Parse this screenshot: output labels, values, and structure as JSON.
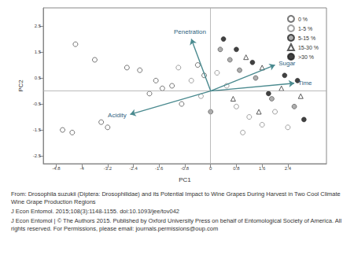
{
  "chart_data": {
    "type": "scatter",
    "x_label": "PC1",
    "y_label": "PC2",
    "xlim": [
      -5.2,
      3.6
    ],
    "ylim": [
      -2.8,
      3.2
    ],
    "xticks": [
      -4.8,
      -4,
      -3.2,
      -2.4,
      -1.6,
      -0.8,
      0,
      0.8,
      1.6,
      2.4
    ],
    "yticks": [
      -2.5,
      -1.5,
      -0.5,
      0.5,
      1.5,
      2.5
    ],
    "grid": false,
    "legend": "upper right",
    "series": [
      {
        "name": "0 %",
        "color": "#555555",
        "marker": "open_circle",
        "x": [
          -4.2,
          -3.6,
          -4.6,
          -4.3,
          -3.4,
          -3.2,
          -2.2,
          -1.7,
          -1.5,
          -1.2,
          -2.6,
          -1.9,
          -0.9,
          -0.4,
          -0.2
        ],
        "y": [
          1.8,
          1.2,
          -1.5,
          -1.6,
          -1.2,
          -1.4,
          0.8,
          0.4,
          0.1,
          0.2,
          0.9,
          -0.1,
          -0.5,
          1.0,
          0.6
        ]
      },
      {
        "name": "1-5 %",
        "color": "#8a8a8a",
        "marker": "open_circle",
        "x": [
          -1.0,
          -0.6,
          0.2,
          0.5,
          -0.3,
          0.8,
          1.2,
          1.6,
          2.0,
          2.4,
          1.0
        ],
        "y": [
          0.9,
          0.4,
          0.7,
          0.2,
          -0.2,
          -0.6,
          -1.0,
          -1.3,
          -0.8,
          -1.4,
          -1.6
        ]
      },
      {
        "name": "5-15 %",
        "color": "#9a9a9a",
        "marker": "filled_circle",
        "x": [
          0.3,
          0.6,
          0.9,
          1.4,
          1.9,
          2.6,
          0.0
        ],
        "y": [
          1.6,
          1.2,
          0.8,
          0.5,
          -0.3,
          -0.6,
          -0.8
        ]
      },
      {
        "name": "15-30 %",
        "color": "#333333",
        "marker": "open_triangle",
        "x": [
          1.1,
          1.6,
          2.2,
          2.8,
          0.7,
          1.5
        ],
        "y": [
          1.3,
          0.9,
          0.1,
          -0.2,
          -0.3,
          -0.8
        ]
      },
      {
        "name": ">30 %",
        "color": "#111111",
        "marker": "filled_circle",
        "x": [
          0.4,
          0.8,
          1.3,
          2.3,
          2.7,
          1.8,
          2.9
        ],
        "y": [
          2.0,
          1.6,
          1.1,
          0.6,
          0.4,
          -0.1,
          -1.1
        ]
      }
    ],
    "vectors": {
      "color": "#4a8a8f",
      "items": [
        {
          "name": "Penetration",
          "x": -0.6,
          "y": 2.0
        },
        {
          "name": "Sugar",
          "x": 2.0,
          "y": 1.0
        },
        {
          "name": "Time",
          "x": 2.6,
          "y": 0.3
        },
        {
          "name": "Acidity",
          "x": -2.5,
          "y": -0.9
        }
      ]
    },
    "annotations": [
      "From: Drosophila suzukii (Diptera: Drosophilidae) and its Potential Impact to Wine Grapes During Harvest in Two Cool Climate Wine Grape Production Regions",
      "J Econ Entomol. 2015;108(3):1148-1155. doi:10.1093/jee/tov042",
      "J Econ Entomol | © The Authors 2015. Published by Oxford University Press on behalf of Entomological Society of America. All rights reserved. For Permissions, please email: journals.permissions@oup.com"
    ]
  }
}
